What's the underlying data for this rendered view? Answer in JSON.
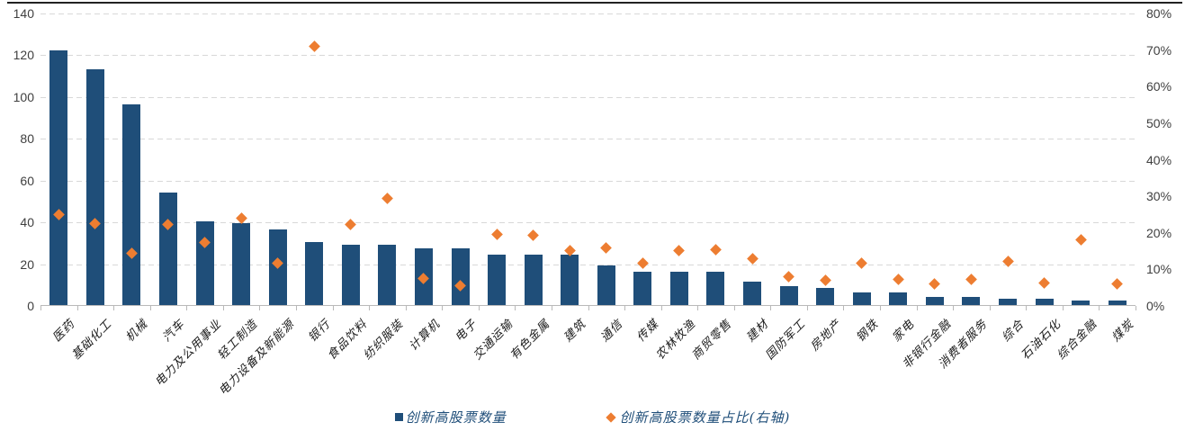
{
  "chart_data": {
    "type": "bar",
    "combo": "bar + diamond scatter, dual axis",
    "title": "",
    "categories": [
      "医药",
      "基础化工",
      "机械",
      "汽车",
      "电力及公用事业",
      "轻工制造",
      "电力设备及新能源",
      "银行",
      "食品饮料",
      "纺织服装",
      "计算机",
      "电子",
      "交通运输",
      "有色金属",
      "建筑",
      "通信",
      "传媒",
      "农林牧渔",
      "商贸零售",
      "建材",
      "国防军工",
      "房地产",
      "钢铁",
      "家电",
      "非银行金融",
      "消费者服务",
      "综合",
      "石油石化",
      "综合金融",
      "煤炭"
    ],
    "series": [
      {
        "name": "创新高股票数量",
        "type": "bar",
        "axis": "left",
        "color": "#1F4E79",
        "values": [
          122,
          113,
          96,
          54,
          40,
          39,
          36,
          30,
          29,
          29,
          27,
          27,
          24,
          24,
          24,
          19,
          16,
          16,
          16,
          11,
          9,
          8,
          6,
          6,
          4,
          4,
          3,
          3,
          2,
          2
        ]
      },
      {
        "name": "创新高股票数量占比(右轴)",
        "type": "scatter",
        "marker": "diamond",
        "axis": "right",
        "color": "#ED7D31",
        "values_percent": [
          25.0,
          22.6,
          14.3,
          22.4,
          17.4,
          23.9,
          11.6,
          71.0,
          22.3,
          29.3,
          7.5,
          5.6,
          19.5,
          19.4,
          15.1,
          15.8,
          11.8,
          15.1,
          15.5,
          12.9,
          7.9,
          6.9,
          11.7,
          7.2,
          6.0,
          7.2,
          12.3,
          6.3,
          18.2,
          6.0
        ]
      }
    ],
    "left_axis": {
      "min": 0,
      "max": 140,
      "step": 20,
      "tick_labels": [
        "140",
        "120",
        "100",
        "80",
        "60",
        "40",
        "20",
        "0"
      ]
    },
    "right_axis": {
      "min": 0,
      "max": 80,
      "step": 10,
      "tick_labels": [
        "80%",
        "70%",
        "60%",
        "50%",
        "40%",
        "30%",
        "20%",
        "10%",
        "0%"
      ]
    },
    "grid": {
      "horizontal": true,
      "style": "dashed",
      "color": "#D8D8D8"
    },
    "legend": {
      "position": "bottom-center",
      "entries": [
        {
          "swatch": "square",
          "color": "#1F4E79",
          "label": "创新高股票数量"
        },
        {
          "swatch": "diamond",
          "color": "#ED7D31",
          "label": "创新高股票数量占比(右轴)"
        }
      ]
    }
  },
  "colors": {
    "bar": "#1F4E79",
    "scatter": "#ED7D31",
    "gridline": "#D8D8D8",
    "axis_line": "#B9B9B9",
    "axis_text": "#3F3F3F",
    "category_text": "#1A1A1A",
    "legend_text": "#1F4E79",
    "top_border": "#222222"
  }
}
